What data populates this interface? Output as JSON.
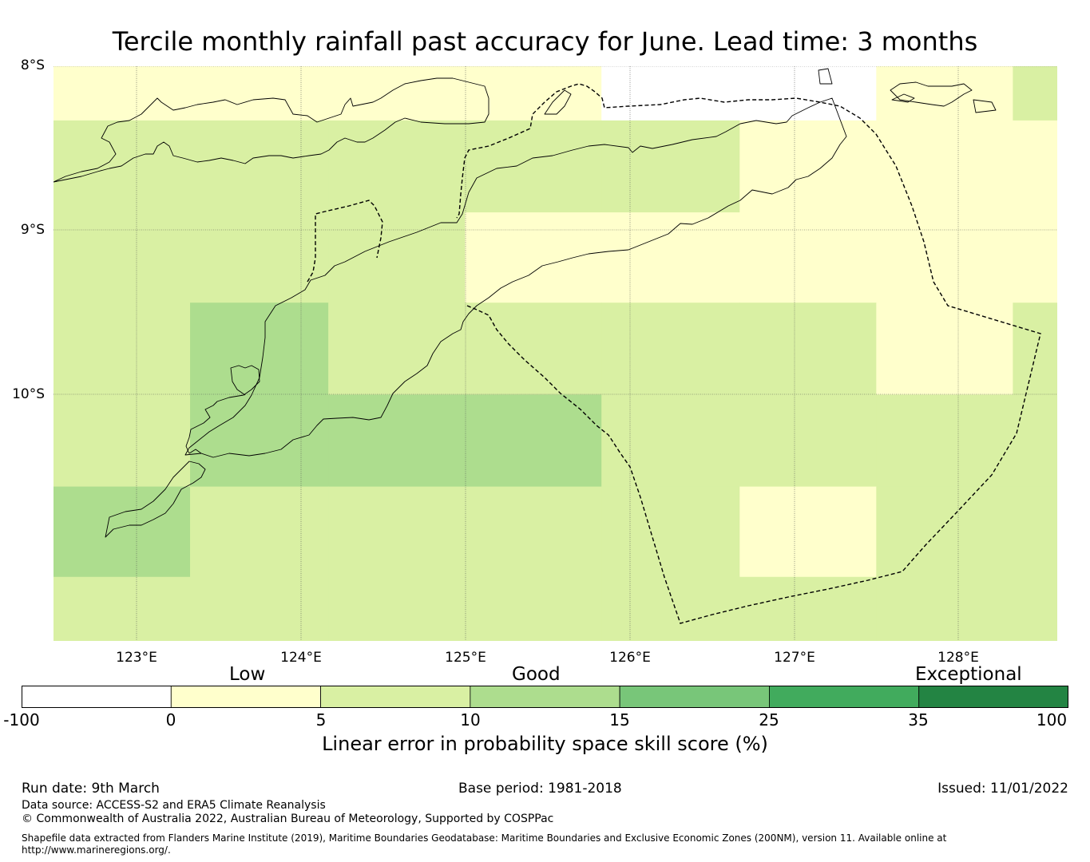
{
  "title": "Tercile monthly rainfall past accuracy for June. Lead time: 3 months",
  "map": {
    "lat_labels": [
      "8°S",
      "9°S",
      "10°S"
    ],
    "lon_labels": [
      "123°E",
      "124°E",
      "125°E",
      "126°E",
      "127°E",
      "128°E"
    ],
    "extent": {
      "lon_min": 122.5,
      "lon_max": 128.6,
      "lat_min": -11.5,
      "lat_max": -8.0
    },
    "cell_size_deg": 0.83,
    "grid_columns_lon_west_edges": [
      122.5,
      123.33,
      124.17,
      125.0,
      125.83,
      126.67,
      127.5,
      128.33
    ],
    "grid_rows_lat_north_edges": [
      -8.0,
      -8.33,
      -8.89,
      -9.44,
      -10.0,
      -10.56,
      -11.11
    ],
    "grid_values_pct": [
      [
        3,
        3,
        3,
        3,
        -1,
        -1,
        3,
        7
      ],
      [
        7,
        7,
        7,
        7,
        7,
        3,
        3,
        3
      ],
      [
        7,
        7,
        7,
        3,
        3,
        3,
        3,
        3
      ],
      [
        7,
        12,
        7,
        7,
        7,
        7,
        3,
        7
      ],
      [
        7,
        12,
        12,
        12,
        7,
        7,
        7,
        7
      ],
      [
        12,
        7,
        7,
        7,
        7,
        3,
        7,
        7
      ],
      [
        7,
        7,
        7,
        7,
        7,
        7,
        7,
        7
      ]
    ],
    "features": [
      "coastline",
      "eez-boundary"
    ]
  },
  "colorbar": {
    "categories": [
      "Low",
      "Good",
      "Exceptional"
    ],
    "bins": [
      {
        "from": -100,
        "to": 0,
        "color": "#ffffff"
      },
      {
        "from": 0,
        "to": 5,
        "color": "#ffffcc"
      },
      {
        "from": 5,
        "to": 10,
        "color": "#d9f0a3"
      },
      {
        "from": 10,
        "to": 15,
        "color": "#addd8e"
      },
      {
        "from": 15,
        "to": 25,
        "color": "#78c679"
      },
      {
        "from": 25,
        "to": 35,
        "color": "#41ab5d"
      },
      {
        "from": 35,
        "to": 100,
        "color": "#238443"
      }
    ],
    "tick_labels": [
      "-100",
      "0",
      "5",
      "10",
      "15",
      "25",
      "35",
      "100"
    ],
    "title": "Linear error in probability space skill score (%)"
  },
  "footer": {
    "run_date": "Run date: 9th March",
    "base_period": "Base period: 1981-2018",
    "issued": "Issued: 11/01/2022",
    "data_source": "Data source: ACCESS-S2 and ERA5 Climate Reanalysis",
    "copyright": "© Commonwealth of Australia 2022, Australian Bureau of Meteorology, Supported by COSPPac",
    "shapefile_line1": "Shapefile data extracted from Flanders Marine Institute (2019), Maritime Boundaries Geodatabase: Maritime Boundaries and Exclusive Economic Zones (200NM), version 11. Available online at",
    "shapefile_line2": "http://www.marineregions.org/."
  }
}
